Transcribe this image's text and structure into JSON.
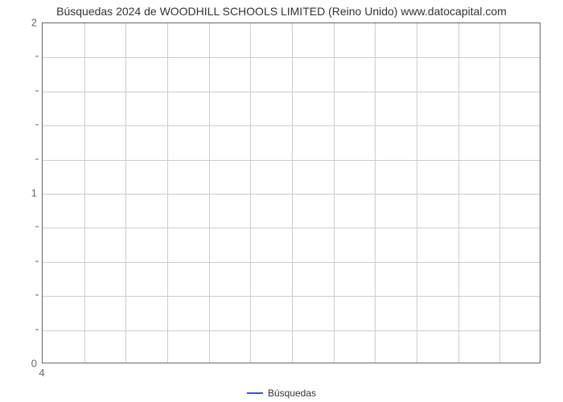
{
  "chart": {
    "type": "line",
    "title": "Búsquedas 2024 de WOODHILL SCHOOLS LIMITED (Reino Unido) www.datocapital.com",
    "title_fontsize": 14,
    "title_color": "#333333",
    "background_color": "#ffffff",
    "plot_border_color": "#666666",
    "grid_color": "#cccccc",
    "x": {
      "ticks": [
        4
      ],
      "tick_labels": [
        "4"
      ],
      "n_grid": 12
    },
    "y": {
      "min": 0,
      "max": 2,
      "major_ticks": [
        0,
        1,
        2
      ],
      "major_labels": [
        "0",
        "1",
        "2"
      ],
      "minor_step": 0.2,
      "n_grid": 10
    },
    "series": [
      {
        "name": "Búsquedas",
        "color": "#3355cc",
        "line_width": 2
      }
    ],
    "legend": {
      "position": "bottom",
      "items": [
        {
          "label": "Búsquedas",
          "color": "#3355cc"
        }
      ]
    }
  }
}
